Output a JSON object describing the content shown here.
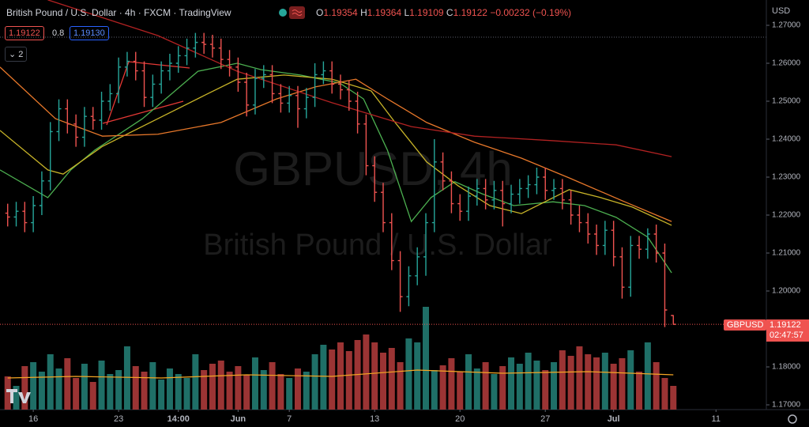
{
  "header": {
    "title": "British Pound / U.S. Dollar · 4h · FXCM · TradingView",
    "ohlc_labels": [
      "O",
      "H",
      "L",
      "C"
    ],
    "change": "−0.00232 (−0.19%)",
    "spread": 0.8,
    "buy": "1.19130",
    "indicator_count": 2
  },
  "watermark": {
    "symbol": "GBPUSD, 4h",
    "name": "British Pound / U.S. Dollar"
  },
  "price_tag": {
    "symbol": "GBPUSD",
    "countdown": "02:47:57"
  },
  "chart_data": {
    "type": "ohlc",
    "currency": "USD",
    "up_color": "#26a69a",
    "down_color": "#ef5350",
    "volume_up_color": "#1f6f67",
    "volume_down_color": "#9b3434",
    "x": [
      -3,
      -2,
      -1,
      0,
      1,
      2,
      3,
      4,
      5,
      6,
      7,
      8,
      9,
      10,
      11,
      12,
      13,
      14,
      15,
      16,
      17,
      18,
      19,
      20,
      21,
      22,
      23,
      24,
      25,
      26,
      27,
      28,
      29,
      30,
      31,
      32,
      33,
      34,
      35,
      36,
      37,
      38,
      39,
      40,
      41,
      42,
      43,
      44,
      45,
      46,
      47,
      48,
      49,
      50,
      51,
      52,
      53,
      54,
      55,
      56,
      57,
      58,
      59,
      60,
      61,
      62,
      63,
      64,
      65,
      66,
      67,
      68,
      69,
      70,
      71,
      72,
      73,
      74,
      75
    ],
    "open": [
      1.2205,
      1.2195,
      1.221,
      1.218,
      1.2225,
      1.229,
      1.242,
      1.248,
      1.244,
      1.2405,
      1.246,
      1.245,
      1.25,
      1.252,
      1.259,
      1.2605,
      1.258,
      1.251,
      1.2545,
      1.258,
      1.26,
      1.262,
      1.264,
      1.2655,
      1.265,
      1.264,
      1.261,
      1.259,
      1.255,
      1.249,
      1.256,
      1.257,
      1.252,
      1.2495,
      1.2515,
      1.248,
      1.251,
      1.257,
      1.258,
      1.2545,
      1.253,
      1.25,
      1.244,
      1.233,
      1.226,
      1.218,
      1.208,
      1.1985,
      1.204,
      1.209,
      1.218,
      1.234,
      1.229,
      1.223,
      1.221,
      1.225,
      1.227,
      1.224,
      1.2265,
      1.223,
      1.2255,
      1.227,
      1.228,
      1.23,
      1.2265,
      1.227,
      1.224,
      1.22,
      1.218,
      1.215,
      1.212,
      1.216,
      1.209,
      1.201,
      1.212,
      1.211,
      1.215,
      1.21,
      1.19354
    ],
    "high": [
      1.223,
      1.2235,
      1.2235,
      1.225,
      1.2315,
      1.2445,
      1.2505,
      1.2505,
      1.2465,
      1.2485,
      1.2485,
      1.2525,
      1.2545,
      1.2615,
      1.263,
      1.263,
      1.2605,
      1.257,
      1.2605,
      1.2625,
      1.2645,
      1.2665,
      1.268,
      1.268,
      1.2675,
      1.2665,
      1.2635,
      1.2615,
      1.2575,
      1.2585,
      1.2595,
      1.2595,
      1.2545,
      1.254,
      1.254,
      1.2535,
      1.26,
      1.2605,
      1.2605,
      1.257,
      1.2555,
      1.2525,
      1.2465,
      1.2355,
      1.2285,
      1.2205,
      1.2105,
      1.2065,
      1.2115,
      1.2205,
      1.24,
      1.2365,
      1.2315,
      1.2255,
      1.2275,
      1.2295,
      1.2295,
      1.229,
      1.229,
      1.228,
      1.2295,
      1.2305,
      1.2325,
      1.2325,
      1.2295,
      1.2295,
      1.2265,
      1.2225,
      1.2205,
      1.2175,
      1.2185,
      1.2185,
      1.2115,
      1.2145,
      1.2145,
      1.2165,
      1.2175,
      1.2125,
      1.19364
    ],
    "low": [
      1.217,
      1.217,
      1.2155,
      1.2155,
      1.22,
      1.2265,
      1.2395,
      1.2415,
      1.238,
      1.238,
      1.2425,
      1.2425,
      1.2475,
      1.2495,
      1.2565,
      1.2555,
      1.2485,
      1.2485,
      1.252,
      1.2555,
      1.2575,
      1.2595,
      1.2615,
      1.2625,
      1.2615,
      1.2585,
      1.2565,
      1.2525,
      1.246,
      1.2465,
      1.2535,
      1.2495,
      1.247,
      1.247,
      1.243,
      1.2455,
      1.2485,
      1.2545,
      1.252,
      1.2505,
      1.2475,
      1.2415,
      1.2305,
      1.2235,
      1.2155,
      1.2055,
      1.1945,
      1.196,
      1.2015,
      1.204,
      1.2155,
      1.2265,
      1.2205,
      1.2185,
      1.2185,
      1.2225,
      1.2215,
      1.2215,
      1.217,
      1.2205,
      1.223,
      1.2245,
      1.2255,
      1.224,
      1.224,
      1.2215,
      1.2175,
      1.2155,
      1.2125,
      1.2095,
      1.2095,
      1.2065,
      1.198,
      1.1985,
      1.2085,
      1.2085,
      1.2075,
      1.1905,
      1.19109
    ],
    "close": [
      1.2195,
      1.221,
      1.218,
      1.2225,
      1.229,
      1.242,
      1.248,
      1.244,
      1.2405,
      1.246,
      1.245,
      1.25,
      1.252,
      1.259,
      1.2605,
      1.258,
      1.251,
      1.2545,
      1.258,
      1.26,
      1.262,
      1.264,
      1.2655,
      1.265,
      1.264,
      1.261,
      1.259,
      1.255,
      1.249,
      1.256,
      1.257,
      1.252,
      1.2495,
      1.2515,
      1.248,
      1.251,
      1.257,
      1.258,
      1.2545,
      1.253,
      1.25,
      1.244,
      1.233,
      1.226,
      1.218,
      1.208,
      1.1985,
      1.204,
      1.209,
      1.218,
      1.234,
      1.229,
      1.223,
      1.221,
      1.225,
      1.227,
      1.224,
      1.2265,
      1.223,
      1.2255,
      1.227,
      1.228,
      1.23,
      1.2265,
      1.227,
      1.224,
      1.22,
      1.218,
      1.215,
      1.212,
      1.216,
      1.209,
      1.201,
      1.212,
      1.211,
      1.215,
      1.21,
      1.195,
      1.19122
    ],
    "volume": [
      42,
      30,
      55,
      60,
      48,
      70,
      52,
      65,
      40,
      58,
      35,
      62,
      45,
      50,
      80,
      55,
      48,
      60,
      38,
      52,
      45,
      40,
      70,
      50,
      58,
      62,
      48,
      55,
      44,
      66,
      50,
      60,
      45,
      40,
      52,
      48,
      70,
      82,
      76,
      85,
      74,
      88,
      95,
      85,
      72,
      78,
      60,
      90,
      85,
      130,
      50,
      56,
      65,
      48,
      70,
      52,
      60,
      45,
      55,
      66,
      58,
      72,
      62,
      50,
      60,
      75,
      68,
      80,
      70,
      66,
      72,
      58,
      65,
      75,
      48,
      85,
      60,
      40,
      30
    ],
    "volume_ylim": [
      0,
      140
    ],
    "volume_ma": {
      "color": "#f5a623",
      "x": [
        -3,
        5,
        15,
        25,
        35,
        45,
        55,
        65,
        75
      ],
      "values": [
        40,
        42,
        40,
        44,
        42,
        50,
        46,
        48,
        44
      ]
    },
    "ma_lines": [
      {
        "color": "#4caf50",
        "x": [
          -3.9,
          1.7,
          4.4,
          7.2,
          12.8,
          19.3,
          23.9,
          26.7,
          31.3,
          35.9,
          38.7,
          41.5,
          44.3,
          46.6,
          49.4,
          52.6,
          56.3,
          60.9,
          64.6,
          68.3,
          72.0,
          74.8
        ],
        "values": [
          1.2319,
          1.2246,
          1.2319,
          1.2371,
          1.2454,
          1.2579,
          1.26,
          1.2583,
          1.2569,
          1.2548,
          1.2506,
          1.2371,
          1.2183,
          1.2246,
          1.2288,
          1.2256,
          1.2225,
          1.2235,
          1.2225,
          1.2194,
          1.2142,
          1.2048
        ]
      },
      {
        "color": "#c8b428",
        "x": [
          -3.9,
          1.7,
          3.5,
          8.1,
          14.6,
          20.2,
          23.9,
          29.4,
          35.0,
          39.6,
          42.4,
          46.1,
          49.8,
          53.5,
          57.2,
          62.8,
          66.5,
          70.2,
          74.8
        ],
        "values": [
          1.2423,
          1.2319,
          1.2308,
          1.2381,
          1.2454,
          1.2517,
          1.2558,
          1.2569,
          1.2558,
          1.2527,
          1.2444,
          1.234,
          1.2277,
          1.2225,
          1.2204,
          1.2267,
          1.2246,
          1.2221,
          1.2173
        ]
      },
      {
        "color": "#e8782a",
        "x": [
          -3.9,
          2.6,
          8.1,
          14.6,
          22.0,
          28.5,
          33.1,
          37.8,
          41.5,
          46.1,
          51.7,
          57.2,
          62.8,
          69.3,
          74.8
        ],
        "values": [
          1.259,
          1.2454,
          1.2408,
          1.2413,
          1.2444,
          1.2506,
          1.2538,
          1.2558,
          1.2506,
          1.2444,
          1.2392,
          1.235,
          1.2298,
          1.2235,
          1.2183
        ]
      },
      {
        "color": "#b22222",
        "x": [
          1.7,
          14.6,
          23.9,
          35.0,
          44.3,
          51.7,
          60.9,
          68.3,
          74.8
        ],
        "values": [
          1.2767,
          1.2673,
          1.2579,
          1.2496,
          1.2433,
          1.2408,
          1.2396,
          1.2385,
          1.2354
        ]
      }
    ],
    "xlim": [
      -3.9,
      85.9
    ],
    "xticks": [
      {
        "value": 0,
        "label": "16"
      },
      {
        "value": 10,
        "label": "23"
      },
      {
        "value": 17,
        "label": "14:00"
      },
      {
        "value": 24,
        "label": "Jun"
      },
      {
        "value": 30,
        "label": "7"
      },
      {
        "value": 40,
        "label": "13"
      },
      {
        "value": 50,
        "label": "20"
      },
      {
        "value": 60,
        "label": "27"
      },
      {
        "value": 68,
        "label": "Jul"
      },
      {
        "value": 80,
        "label": "11"
      }
    ],
    "ylim": [
      1.16833,
      1.27667
    ],
    "yticks": [
      {
        "value": 1.27,
        "label": "1.27000"
      },
      {
        "value": 1.26,
        "label": "1.26000"
      },
      {
        "value": 1.25,
        "label": "1.25000"
      },
      {
        "value": 1.24,
        "label": "1.24000"
      },
      {
        "value": 1.23,
        "label": "1.23000"
      },
      {
        "value": 1.22,
        "label": "1.22000"
      },
      {
        "value": 1.21,
        "label": "1.21000"
      },
      {
        "value": 1.2,
        "label": "1.20000"
      },
      {
        "value": 1.19,
        "label": "1.19000"
      },
      {
        "value": 1.18,
        "label": "1.18000"
      },
      {
        "value": 1.17,
        "label": "1.17000"
      }
    ]
  }
}
